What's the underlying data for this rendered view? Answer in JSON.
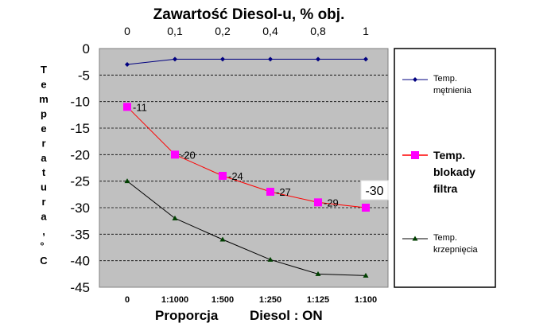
{
  "chart_data": {
    "type": "line",
    "top_axis": {
      "title": "Zawartość Diesol-u, % obj.",
      "tick_labels": [
        "0",
        "0,1",
        "0,2",
        "0,4",
        "0,8",
        "1"
      ]
    },
    "bottom_axis": {
      "title_left": "Proporcja",
      "title_right": "Diesol : ON",
      "tick_labels": [
        "0",
        "1:1000",
        "1:500",
        "1:250",
        "1:125",
        "1:100"
      ]
    },
    "ylabel": "Temperatura, °C",
    "ylabel_chars": [
      "T",
      "e",
      "m",
      "p",
      "e",
      "r",
      "a",
      "t",
      "u",
      "r",
      "a",
      ",",
      "°",
      "C"
    ],
    "ylim": [
      -45,
      0
    ],
    "yticks": [
      0,
      -5,
      -10,
      -15,
      -20,
      -25,
      -30,
      -35,
      -40,
      -45
    ],
    "grid": "horizontal-dashed",
    "legend_position": "right",
    "colors": {
      "plot_background": "#c0c0c0",
      "series_metnienia": "#000080",
      "series_blokady": "#ff0000",
      "marker_blokady": "#ff00ff",
      "series_krzepniecia": "#000000",
      "marker_krzepniecia": "#004000"
    },
    "series": [
      {
        "name": "Temp. mętnienia",
        "legend_lines": [
          "Temp.",
          "mętnienia"
        ],
        "values": [
          -3,
          -2,
          -2,
          -2,
          -2,
          -2
        ],
        "marker": "diamond",
        "data_labels": []
      },
      {
        "name": "Temp. blokady filtra",
        "legend_lines": [
          "Temp.",
          "blokady",
          "filtra"
        ],
        "values": [
          -11,
          -20,
          -24,
          -27,
          -29,
          -30
        ],
        "marker": "square",
        "data_labels": [
          "-11",
          "-20",
          "-24",
          "-27",
          "-29",
          "-30"
        ]
      },
      {
        "name": "Temp. krzepnięcia",
        "legend_lines": [
          "Temp.",
          "krzepnięcia"
        ],
        "values": [
          -25,
          -32,
          -36,
          -39.8,
          -42.5,
          -42.8
        ],
        "marker": "triangle",
        "data_labels": []
      }
    ]
  }
}
